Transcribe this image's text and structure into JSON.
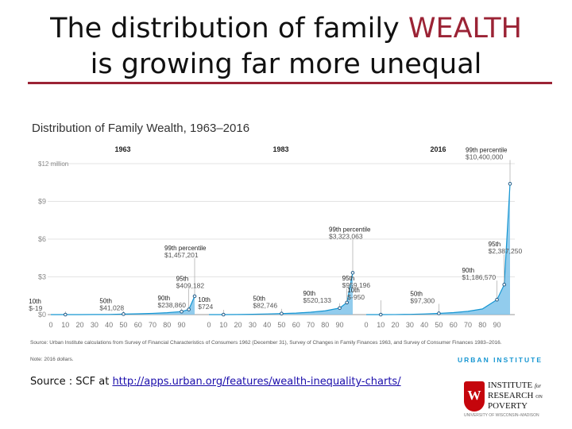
{
  "slide": {
    "title_line1_pre": "The distribution of family ",
    "title_line1_accent": "WEALTH",
    "title_line2": "is growing far more unequal",
    "source_label": "Source : SCF at ",
    "source_link": "http://apps.urban.org/features/wealth-inequality-charts/"
  },
  "colors": {
    "accent": "#9b2335",
    "area_fill": "#7fc3ea",
    "area_line": "#1696d2",
    "link": "#1a0dab",
    "logo_red": "#c5050c"
  },
  "logo": {
    "crest_letter": "W",
    "line1": "INSTITUTE",
    "line1_small": "for",
    "line2": "RESEARCH",
    "line2_small": "ON",
    "line3": "POVERTY",
    "tagline": "UNIVERSITY OF WISCONSIN–MADISON"
  },
  "chart_data": {
    "type": "area",
    "title": "Distribution of Family Wealth, 1963–2016",
    "y_tick_labels": [
      "$12 million",
      "$9",
      "$6",
      "$3",
      "$0"
    ],
    "y_ticks": [
      12,
      9,
      6,
      3,
      0
    ],
    "ylim": [
      0,
      12
    ],
    "y_unit": "million dollars",
    "x_ticks": [
      0,
      10,
      20,
      30,
      40,
      50,
      60,
      70,
      80,
      90
    ],
    "xlim": [
      0,
      99
    ],
    "grid": true,
    "panels": [
      {
        "year": "1963",
        "x": [
          0,
          10,
          20,
          30,
          40,
          50,
          60,
          70,
          80,
          90,
          95,
          99
        ],
        "y": [
          0,
          -1.9e-05,
          0.002,
          0.006,
          0.013,
          0.041028,
          0.065,
          0.1,
          0.15,
          0.23886,
          0.409182,
          1.457201
        ],
        "annotations": [
          {
            "label": "10th",
            "value": "$-19",
            "x": 10
          },
          {
            "label": "50th",
            "value": "$41,028",
            "x": 50
          },
          {
            "label": "90th",
            "value": "$238,860",
            "x": 90
          },
          {
            "label": "95th",
            "value": "$409,182",
            "x": 95
          },
          {
            "label": "99th percentile",
            "value": "$1,457,201",
            "x": 99
          }
        ]
      },
      {
        "year": "1983",
        "x": [
          0,
          10,
          20,
          30,
          40,
          50,
          60,
          70,
          80,
          90,
          95,
          99
        ],
        "y": [
          0,
          0.000724,
          0.01,
          0.025,
          0.05,
          0.082746,
          0.12,
          0.19,
          0.3,
          0.520133,
          0.959196,
          3.323063
        ],
        "annotations": [
          {
            "label": "10th",
            "value": "$724",
            "x": 10
          },
          {
            "label": "50th",
            "value": "$82,746",
            "x": 50
          },
          {
            "label": "90th",
            "value": "$520,133",
            "x": 90
          },
          {
            "label": "95th",
            "value": "$959,196",
            "x": 95
          },
          {
            "label": "99th percentile",
            "value": "$3,323,063",
            "x": 99
          }
        ]
      },
      {
        "year": "2016",
        "x": [
          0,
          10,
          20,
          30,
          40,
          50,
          60,
          70,
          80,
          90,
          95,
          99
        ],
        "y": [
          0,
          -0.00095,
          0.005,
          0.02,
          0.05,
          0.0973,
          0.16,
          0.26,
          0.45,
          1.18657,
          2.38725,
          10.4
        ],
        "annotations": [
          {
            "label": "10th",
            "value": "$-950",
            "x": 10
          },
          {
            "label": "50th",
            "value": "$97,300",
            "x": 50
          },
          {
            "label": "90th",
            "value": "$1,186,570",
            "x": 90
          },
          {
            "label": "95th",
            "value": "$2,387,250",
            "x": 95
          },
          {
            "label": "99th percentile",
            "value": "$10,400,000",
            "x": 99
          }
        ]
      }
    ],
    "source_note": "Source: Urban Institute calculations from Survey of Financial Characteristics of Consumers 1962 (December 31), Survey of Changes in Family Finances 1963, and Survey of Consumer Finances 1983–2016.",
    "note": "Note: 2016 dollars.",
    "brand": "URBAN INSTITUTE"
  }
}
